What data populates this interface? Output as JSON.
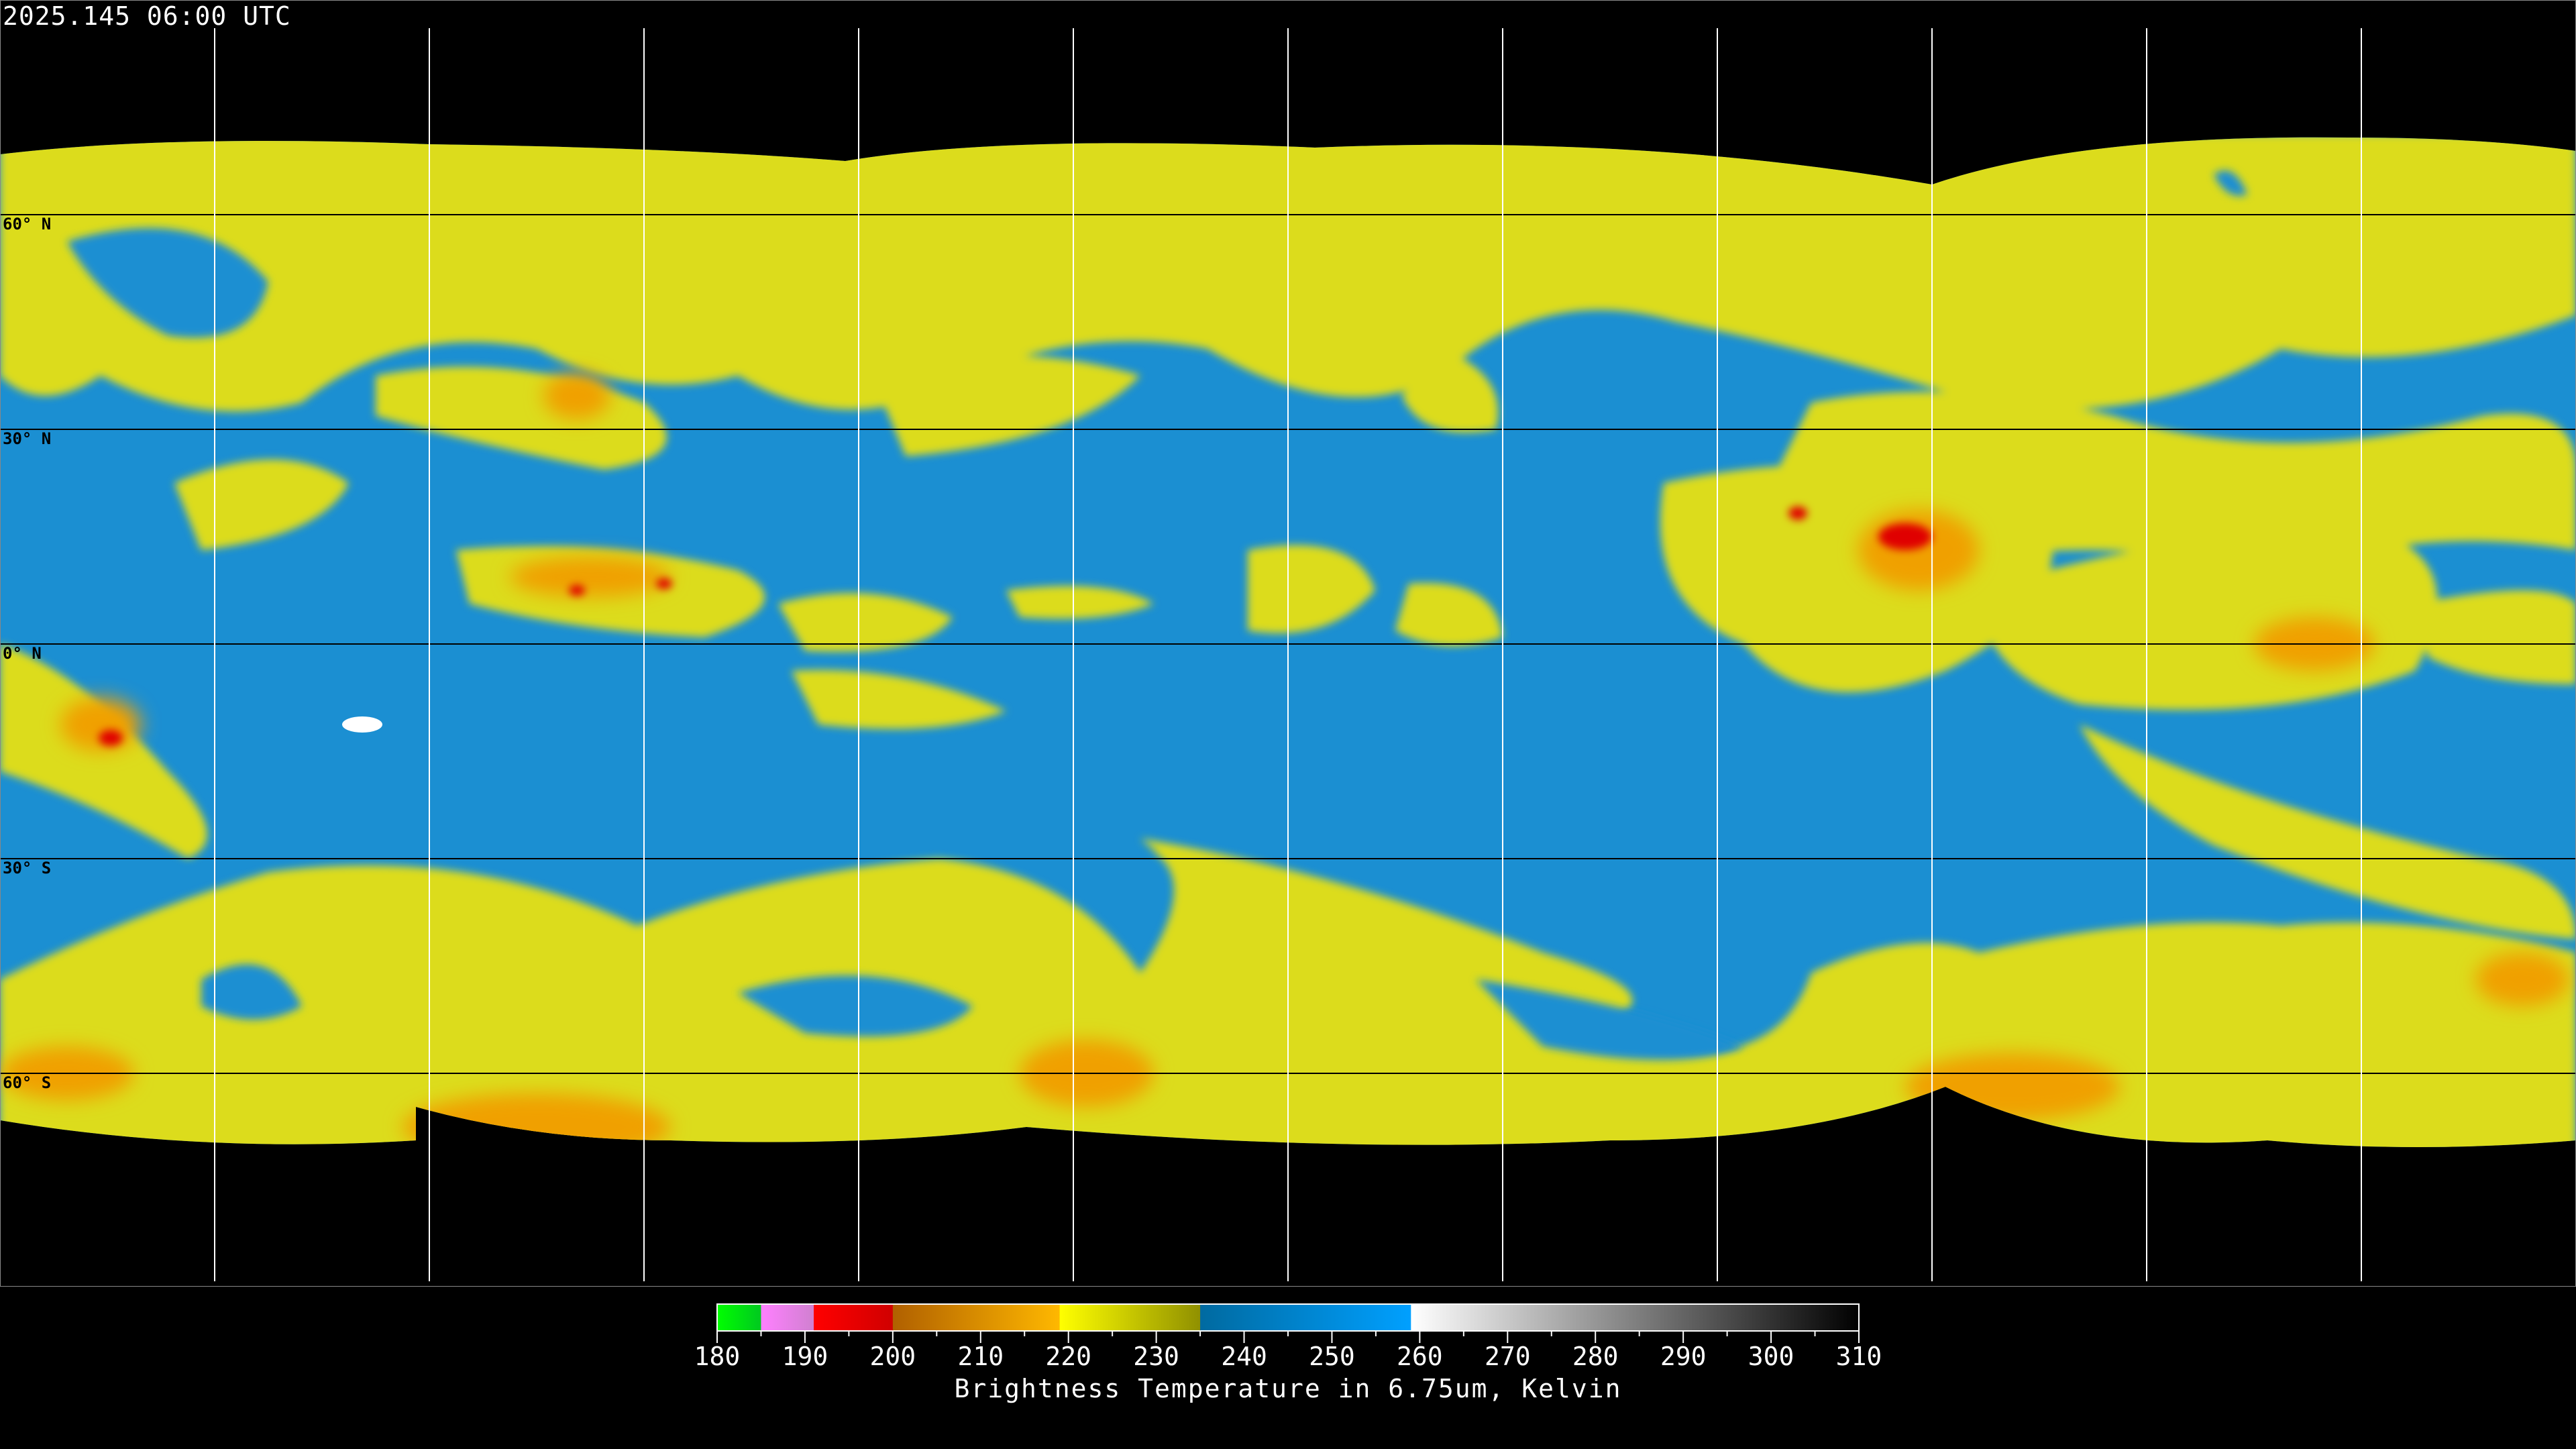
{
  "header": {
    "title": "2025.145 06:00 UTC"
  },
  "map": {
    "type": "global equirectangular satellite composite",
    "lat_labels": [
      "60° N",
      "30° N",
      "0° N",
      "30° S",
      "60° S"
    ],
    "grid_spacing_deg": 30,
    "colors": {
      "blue": "#1b8fd2",
      "yellow": "#dcdc1c",
      "orange": "#f0a000",
      "red": "#e00000",
      "background": "#000000"
    }
  },
  "colorbar": {
    "label": "Brightness Temperature in 6.75um, Kelvin",
    "min": 180,
    "max": 310,
    "ticks": [
      "180",
      "190",
      "200",
      "210",
      "220",
      "230",
      "240",
      "250",
      "260",
      "270",
      "280",
      "290",
      "300",
      "310"
    ],
    "segments": [
      {
        "from": 180,
        "to": 185,
        "colors": [
          "#00ff00",
          "#00c820"
        ]
      },
      {
        "from": 185,
        "to": 191,
        "colors": [
          "#ff80ff",
          "#d080d0"
        ]
      },
      {
        "from": 191,
        "to": 200,
        "colors": [
          "#ff0000",
          "#d00000"
        ]
      },
      {
        "from": 200,
        "to": 219,
        "colors": [
          "#b06000",
          "#ffb800"
        ]
      },
      {
        "from": 219,
        "to": 235,
        "colors": [
          "#ffff00",
          "#909000"
        ]
      },
      {
        "from": 235,
        "to": 259,
        "colors": [
          "#006aa0",
          "#00a0ff"
        ]
      },
      {
        "from": 259,
        "to": 310,
        "colors": [
          "#ffffff",
          "#000000"
        ]
      }
    ]
  }
}
